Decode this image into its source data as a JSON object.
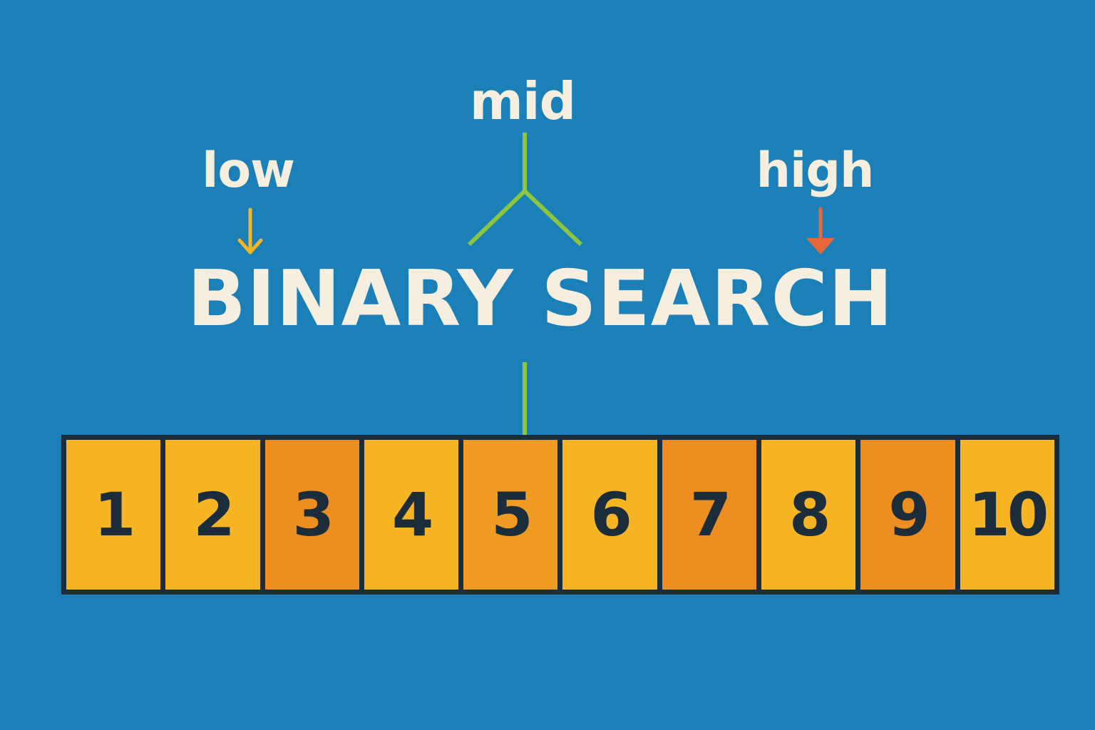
{
  "pointers": {
    "mid": "mid",
    "low": "low",
    "high": "high"
  },
  "title": "BINARY SEARCH",
  "array": [
    {
      "value": "1",
      "color": "#f7b423"
    },
    {
      "value": "2",
      "color": "#f7b423"
    },
    {
      "value": "3",
      "color": "#ee8d20"
    },
    {
      "value": "4",
      "color": "#f7b423"
    },
    {
      "value": "5",
      "color": "#f29b22"
    },
    {
      "value": "6",
      "color": "#f7b423"
    },
    {
      "value": "7",
      "color": "#ee8d20"
    },
    {
      "value": "8",
      "color": "#f7b423"
    },
    {
      "value": "9",
      "color": "#ee8d20"
    },
    {
      "value": "10",
      "color": "#f7b423"
    }
  ],
  "colors": {
    "background": "#1b80b8",
    "text": "#f6eede",
    "mid_line": "#8cc63f",
    "low_arrow": "#f7b423",
    "high_arrow": "#e8683a",
    "border": "#1b2d3a"
  }
}
